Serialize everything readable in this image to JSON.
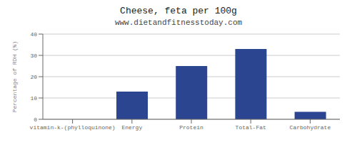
{
  "chart_data": {
    "type": "bar",
    "title": "Cheese, feta per 100g",
    "subtitle": "www.dietandfitnesstoday.com",
    "ylabel": "Percentage of RDH (%)",
    "categories": [
      "vitamin-k-(phylloquinone)",
      "Energy",
      "Protein",
      "Total-Fat",
      "Carbohydrate"
    ],
    "values": [
      0,
      13,
      25,
      33,
      3.5
    ],
    "color": "#2b4590",
    "ylim": [
      0,
      40
    ],
    "yticks": [
      0,
      10,
      20,
      30,
      40
    ],
    "grid": true
  }
}
